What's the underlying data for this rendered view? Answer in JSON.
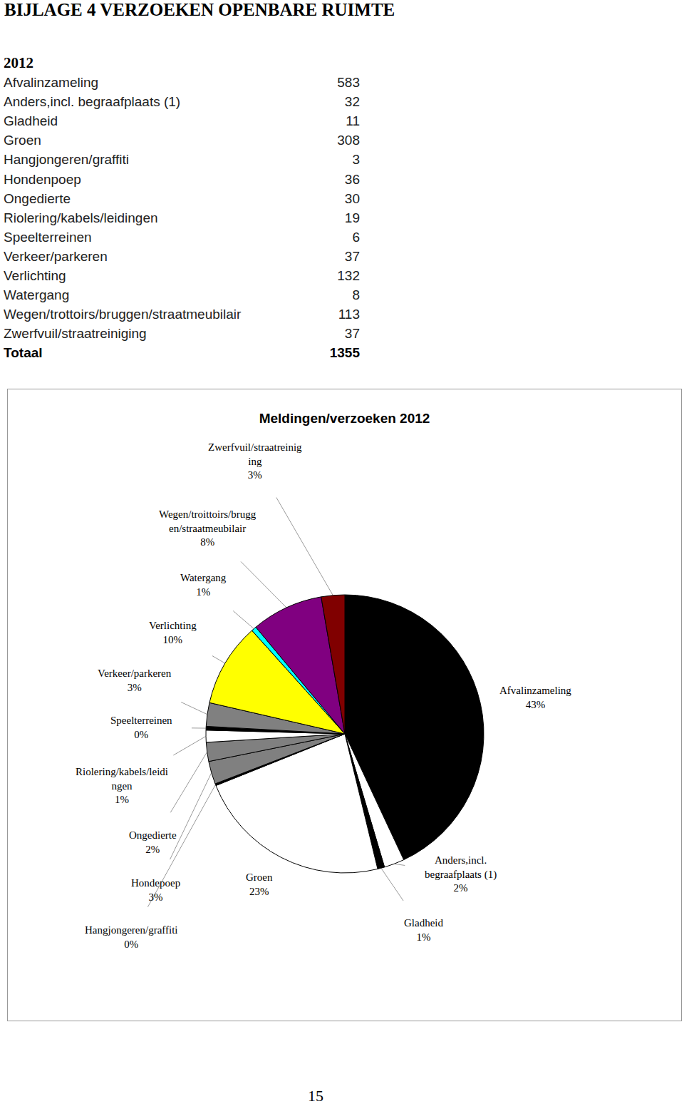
{
  "header": {
    "title": "BIJLAGE 4 VERZOEKEN OPENBARE RUIMTE"
  },
  "table": {
    "year": 2012,
    "rows": [
      [
        "Afvalinzameling",
        583
      ],
      [
        "Anders,incl. begraafplaats (1)",
        32
      ],
      [
        "Gladheid",
        11
      ],
      [
        "Groen",
        308
      ],
      [
        "Hangjongeren/graffiti",
        3
      ],
      [
        "Hondenpoep",
        36
      ],
      [
        "Ongedierte",
        30
      ],
      [
        "Riolering/kabels/leidingen",
        19
      ],
      [
        "Speelterreinen",
        6
      ],
      [
        "Verkeer/parkeren",
        37
      ],
      [
        "Verlichting",
        132
      ],
      [
        "Watergang",
        8
      ],
      [
        "Wegen/trottoirs/bruggen/straatmeubilair",
        113
      ],
      [
        "Zwerfvuil/straatreiniging",
        37
      ]
    ],
    "total": [
      "Totaal",
      1355
    ]
  },
  "chart_data": {
    "type": "pie",
    "title": "Meldingen/verzoeken 2012",
    "categories": [
      "Afvalinzameling",
      "Anders,incl. begraafplaats (1)",
      "Gladheid",
      "Groen",
      "Hangjongeren/graffiti",
      "Hondepoep",
      "Ongedierte",
      "Riolering/kabels/leidingen",
      "Speelterreinen",
      "Verkeer/parkeren",
      "Verlichting",
      "Watergang",
      "Wegen/troittoirs/bruggen/straatmeubilair",
      "Zwerfvuil/straatreiniging"
    ],
    "values": [
      43.03,
      2.36,
      0.81,
      22.73,
      0.22,
      2.66,
      2.21,
      1.4,
      0.44,
      2.73,
      9.74,
      0.59,
      8.34,
      2.73
    ],
    "value_labels": [
      "43%",
      "2%",
      "1%",
      "23%",
      "0%",
      "3%",
      "2%",
      "1%",
      "0%",
      "3%",
      "10%",
      "1%",
      "8%",
      "3%"
    ],
    "colors": [
      "#000000",
      "#ffffff",
      "#000000",
      "#ffffff",
      "#000000",
      "#808080",
      "#808080",
      "#ffffff",
      "#000000",
      "#808080",
      "#ffff00",
      "#00ffff",
      "#800080",
      "#800000"
    ],
    "data_labels": true
  },
  "page_number": 15
}
